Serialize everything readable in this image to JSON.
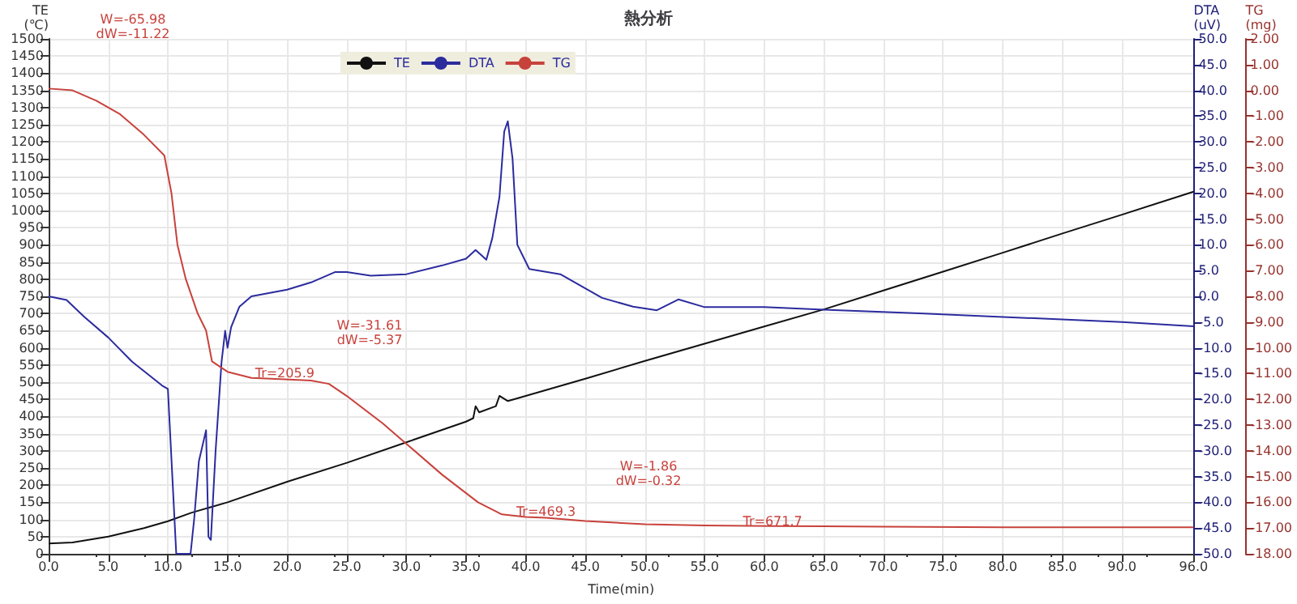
{
  "chart_data": {
    "type": "line",
    "title": "熱分析",
    "xlabel": "Time(min)",
    "ylabel": "TE\n(℃)",
    "y2label": "DTA\n(uV)",
    "y3label": "TG\n(mg)",
    "series": [
      {
        "name": "TE",
        "color": "#111111",
        "axis": "y",
        "x": [
          0,
          2,
          5,
          8,
          10,
          12,
          15,
          20,
          25,
          30,
          35,
          35.6,
          35.8,
          36.1,
          37.5,
          37.8,
          38.5,
          39,
          45,
          50,
          55,
          60,
          65,
          70,
          75,
          80,
          85,
          90,
          96
        ],
        "values": [
          30,
          33,
          50,
          75,
          95,
          120,
          150,
          210,
          265,
          325,
          385,
          395,
          430,
          412,
          430,
          460,
          445,
          450,
          510,
          562,
          612,
          662,
          712,
          767,
          822,
          877,
          933,
          988,
          1055
        ]
      },
      {
        "name": "DTA",
        "color": "#2b2b9e",
        "axis": "y2",
        "x": [
          0,
          1.5,
          3,
          5,
          7,
          9.5,
          10,
          10.7,
          11.9,
          12.2,
          12.6,
          13.2,
          13.4,
          13.6,
          14,
          14.5,
          14.8,
          15,
          15.3,
          16,
          17,
          20,
          22,
          24,
          25,
          27,
          30,
          33,
          35,
          35.8,
          36.7,
          37.2,
          37.8,
          38.2,
          38.5,
          38.9,
          39.3,
          40.3,
          42.9,
          46.4,
          49,
          51,
          52.8,
          55,
          60,
          65,
          73,
          80,
          90,
          96
        ],
        "values": [
          0.0,
          -0.7,
          -4.0,
          -8.0,
          -12.7,
          -17.3,
          -18.0,
          -50,
          -50,
          -43.3,
          -32,
          -26,
          -46.7,
          -47.3,
          -30,
          -12.7,
          -6.7,
          -10,
          -6,
          -2,
          0,
          1.3,
          2.7,
          4.7,
          4.7,
          4,
          4.3,
          6,
          7.3,
          9,
          7.1,
          11.3,
          19.3,
          32,
          34,
          26.7,
          10,
          5.3,
          4.3,
          -0.3,
          -2,
          -2.7,
          -0.6,
          -2.1,
          -2.1,
          -2.6,
          -3.3,
          -4,
          -5,
          -5.8
        ]
      },
      {
        "name": "TG",
        "color": "#c8423c",
        "axis": "y3",
        "x": [
          0,
          2,
          4,
          6,
          8,
          9.7,
          10.3,
          10.8,
          11.5,
          12.5,
          13.2,
          13.7,
          15,
          17,
          19.8,
          22,
          23.5,
          25,
          28,
          30,
          33,
          36,
          38,
          40,
          41.7,
          45,
          50,
          55,
          60.7,
          70,
          80,
          96
        ],
        "values": [
          0.07,
          0.0,
          -0.4,
          -0.93,
          -1.73,
          -2.53,
          -4.0,
          -6.0,
          -7.33,
          -8.67,
          -9.33,
          -10.53,
          -10.93,
          -11.17,
          -11.22,
          -11.27,
          -11.4,
          -11.87,
          -12.93,
          -13.73,
          -14.93,
          -16.0,
          -16.47,
          -16.57,
          -16.6,
          -16.73,
          -16.85,
          -16.9,
          -16.92,
          -16.95,
          -16.97,
          -16.97
        ]
      }
    ],
    "xlim": [
      0,
      96
    ],
    "xticks": [
      {
        "value": 0,
        "label": "0.0"
      },
      {
        "value": 5,
        "label": "5.0"
      },
      {
        "value": 10,
        "label": "10.0"
      },
      {
        "value": 15,
        "label": "15.0"
      },
      {
        "value": 20,
        "label": "20.0"
      },
      {
        "value": 25,
        "label": "25.0"
      },
      {
        "value": 30,
        "label": "30.0"
      },
      {
        "value": 35,
        "label": "35.0"
      },
      {
        "value": 40,
        "label": "40.0"
      },
      {
        "value": 45,
        "label": "45.0"
      },
      {
        "value": 50,
        "label": "50.0"
      },
      {
        "value": 55,
        "label": "55.0"
      },
      {
        "value": 60,
        "label": "60.0"
      },
      {
        "value": 65,
        "label": "65.0"
      },
      {
        "value": 70,
        "label": "70.0"
      },
      {
        "value": 75,
        "label": "75.0"
      },
      {
        "value": 80,
        "label": "80.0"
      },
      {
        "value": 85,
        "label": "85.0"
      },
      {
        "value": 90,
        "label": "90.0"
      },
      {
        "value": 96,
        "label": "96.0"
      }
    ],
    "ylim": [
      0,
      1500
    ],
    "yticks": [
      0,
      50,
      100,
      150,
      200,
      250,
      300,
      350,
      400,
      450,
      500,
      550,
      600,
      650,
      700,
      750,
      800,
      850,
      900,
      950,
      1000,
      1050,
      1100,
      1150,
      1200,
      1250,
      1300,
      1350,
      1400,
      1450,
      1500
    ],
    "y2lim": [
      -50,
      50
    ],
    "y2ticks": [
      {
        "value": -50,
        "label": "-50.0"
      },
      {
        "value": -45,
        "label": "-45.0"
      },
      {
        "value": -40,
        "label": "-40.0"
      },
      {
        "value": -35,
        "label": "-35.0"
      },
      {
        "value": -30,
        "label": "-30.0"
      },
      {
        "value": -25,
        "label": "-25.0"
      },
      {
        "value": -20,
        "label": "-20.0"
      },
      {
        "value": -15,
        "label": "-15.0"
      },
      {
        "value": -10,
        "label": "-10.0"
      },
      {
        "value": -5,
        "label": "-5.0"
      },
      {
        "value": 0,
        "label": "0.0"
      },
      {
        "value": 5,
        "label": "5.0"
      },
      {
        "value": 10,
        "label": "10.0"
      },
      {
        "value": 15,
        "label": "15.0"
      },
      {
        "value": 20,
        "label": "20.0"
      },
      {
        "value": 25,
        "label": "25.0"
      },
      {
        "value": 30,
        "label": "30.0"
      },
      {
        "value": 35,
        "label": "35.0"
      },
      {
        "value": 40,
        "label": "40.0"
      },
      {
        "value": 45,
        "label": "45.0"
      },
      {
        "value": 50,
        "label": "50.0"
      }
    ],
    "y3lim": [
      -18,
      2
    ],
    "y3ticks": [
      {
        "value": -18,
        "label": "-18.00"
      },
      {
        "value": -17,
        "label": "-17.00"
      },
      {
        "value": -16,
        "label": "-16.00"
      },
      {
        "value": -15,
        "label": "-15.00"
      },
      {
        "value": -14,
        "label": "-14.00"
      },
      {
        "value": -13,
        "label": "-13.00"
      },
      {
        "value": -12,
        "label": "-12.00"
      },
      {
        "value": -11,
        "label": "-11.00"
      },
      {
        "value": -10,
        "label": "-10.00"
      },
      {
        "value": -9,
        "label": "-9.00"
      },
      {
        "value": -8,
        "label": "-8.00"
      },
      {
        "value": -7,
        "label": "-7.00"
      },
      {
        "value": -6,
        "label": "-6.00"
      },
      {
        "value": -5,
        "label": "-5.00"
      },
      {
        "value": -4,
        "label": "-4.00"
      },
      {
        "value": -3,
        "label": "-3.00"
      },
      {
        "value": -2,
        "label": "-2.00"
      },
      {
        "value": -1,
        "label": "-1.00"
      },
      {
        "value": 0,
        "label": "0.00"
      },
      {
        "value": 1,
        "label": "1.00"
      },
      {
        "value": 2,
        "label": "2.00"
      }
    ],
    "annotations": [
      "W=-65.98",
      "dW=-11.22",
      {
        "text": "Tr=205.9",
        "x": 19.8,
        "y": 508
      },
      "W=-31.61",
      "dW=-5.37",
      {
        "text": "Tr=469.3",
        "x": 41.7,
        "y": 103
      },
      "W=-1.86",
      "dW=-0.32",
      {
        "text": "Tr=671.7",
        "x": 60.7,
        "y": 76
      }
    ],
    "grid": true,
    "legend": "top left",
    "marker": "none",
    "line_style": "solid"
  }
}
